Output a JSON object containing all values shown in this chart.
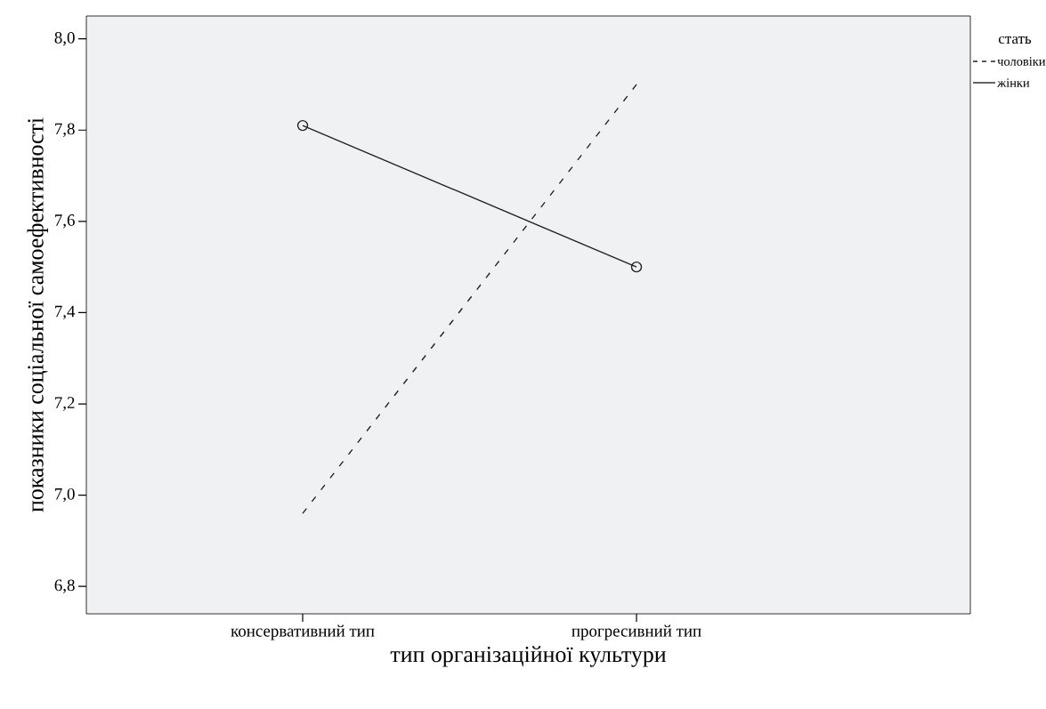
{
  "chart_data": {
    "type": "line",
    "xlabel": "тип організаційної культури",
    "ylabel": "показники соціальної самоефективності",
    "legend_title": "стать",
    "categories": [
      "консервативний тип",
      "прогресивний тип"
    ],
    "series": [
      {
        "name": "чоловіки",
        "color": "#222222",
        "values": [
          6.96,
          7.9
        ],
        "line_style": "dashed",
        "marker": "none"
      },
      {
        "name": "жінки",
        "color": "#222222",
        "values": [
          7.81,
          7.5
        ],
        "line_style": "solid",
        "marker": "circle"
      }
    ],
    "ylim": [
      6.74,
      8.05
    ],
    "yticks": [
      {
        "value": 6.8,
        "label": "6,8"
      },
      {
        "value": 7.0,
        "label": "7,0"
      },
      {
        "value": 7.2,
        "label": "7,2"
      },
      {
        "value": 7.4,
        "label": "7,4"
      },
      {
        "value": 7.6,
        "label": "7,6"
      },
      {
        "value": 7.8,
        "label": "7,8"
      },
      {
        "value": 8.0,
        "label": "8,0"
      }
    ],
    "grid": false,
    "legend": "top right"
  }
}
